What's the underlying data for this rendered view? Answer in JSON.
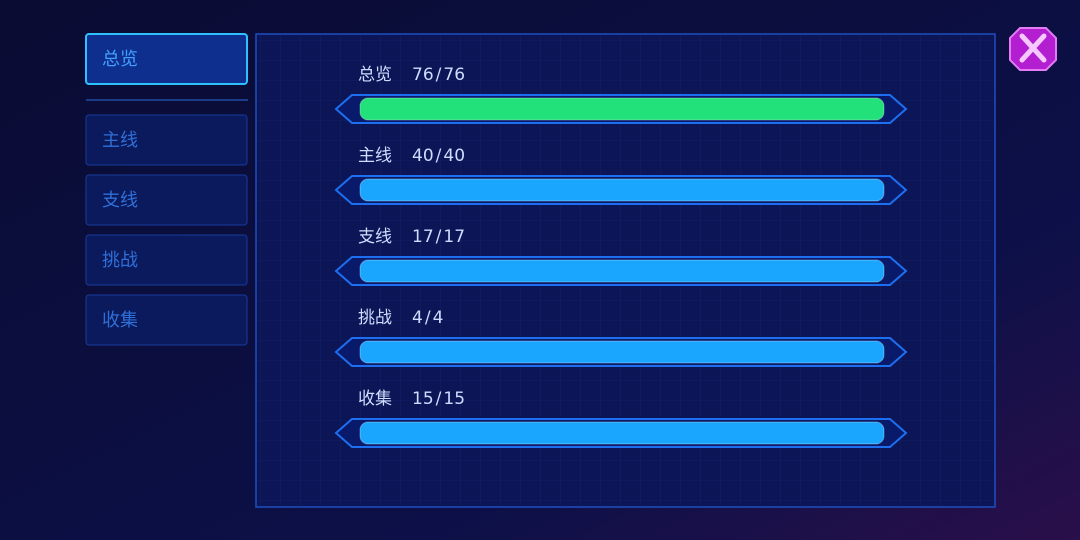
{
  "tabs": [
    {
      "label": "总览",
      "selected": true
    },
    {
      "label": "主线",
      "selected": false
    },
    {
      "label": "支线",
      "selected": false
    },
    {
      "label": "挑战",
      "selected": false
    },
    {
      "label": "收集",
      "selected": false
    }
  ],
  "separator": "/",
  "rows": [
    {
      "label": "总览",
      "current": 76,
      "total": 76,
      "color": "#22e07a"
    },
    {
      "label": "主线",
      "current": 40,
      "total": 40,
      "color": "#1aa6ff"
    },
    {
      "label": "支线",
      "current": 17,
      "total": 17,
      "color": "#1aa6ff"
    },
    {
      "label": "挑战",
      "current": 4,
      "total": 4,
      "color": "#1aa6ff"
    },
    {
      "label": "收集",
      "current": 15,
      "total": 15,
      "color": "#1aa6ff"
    }
  ]
}
